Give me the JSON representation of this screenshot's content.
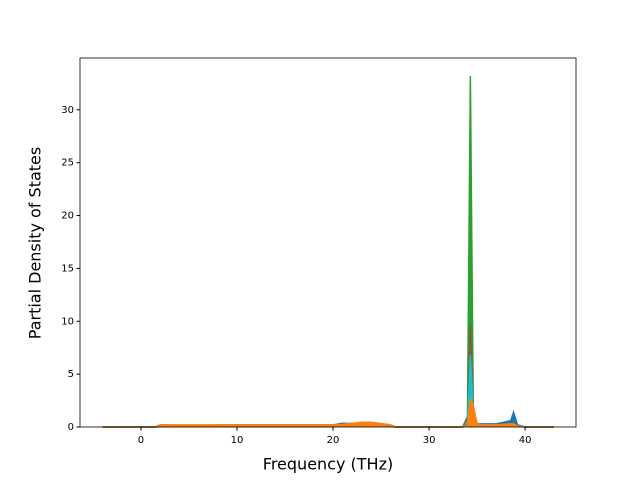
{
  "chart_data": {
    "type": "area",
    "xlabel": "Frequency (THz)",
    "ylabel": "Partial Density of States",
    "x": [
      -4,
      1.5,
      2,
      5,
      10,
      15,
      20,
      21,
      23,
      24,
      26,
      26.5,
      33.5,
      34,
      34.3,
      34.6,
      35,
      35.5,
      36,
      37,
      38.5,
      38.8,
      39.2,
      40,
      43
    ],
    "series": [
      {
        "color": "#2ca02c",
        "values": [
          0,
          0,
          0.05,
          0.05,
          0.05,
          0.05,
          0.05,
          0.1,
          0.1,
          0.1,
          0.05,
          0,
          0,
          1,
          33.2,
          2,
          0.2,
          0.1,
          0.1,
          0.1,
          0.1,
          0.1,
          0.05,
          0,
          0
        ]
      },
      {
        "color": "#8c564b",
        "values": [
          0,
          0,
          0.1,
          0.1,
          0.1,
          0.1,
          0.1,
          0.2,
          0.2,
          0.2,
          0.1,
          0,
          0,
          0.8,
          9.6,
          1.5,
          0.2,
          0.1,
          0.1,
          0.1,
          0.2,
          0.3,
          0.1,
          0,
          0
        ]
      },
      {
        "color": "#17becf",
        "values": [
          0,
          0,
          0.15,
          0.15,
          0.15,
          0.15,
          0.15,
          0.3,
          0.35,
          0.35,
          0.15,
          0,
          0,
          0.5,
          6.8,
          1.2,
          0.3,
          0.2,
          0.2,
          0.2,
          0.4,
          0.6,
          0.1,
          0,
          0
        ]
      },
      {
        "color": "#1f77b4",
        "values": [
          0,
          0,
          0.2,
          0.15,
          0.2,
          0.2,
          0.2,
          0.35,
          0.3,
          0.3,
          0.15,
          0,
          0,
          0.3,
          1,
          0.5,
          0.3,
          0.3,
          0.3,
          0.3,
          0.6,
          1.4,
          0.2,
          0,
          0
        ]
      },
      {
        "color": "#ff7f0e",
        "values": [
          0,
          0,
          0.2,
          0.2,
          0.2,
          0.2,
          0.2,
          0.25,
          0.45,
          0.45,
          0.2,
          0,
          0,
          0.2,
          2.7,
          2,
          0.3,
          0.2,
          0.2,
          0.2,
          0.3,
          0.3,
          0.1,
          0,
          0
        ]
      }
    ],
    "xlim": [
      -6.35,
      45.3
    ],
    "ylim": [
      0,
      34.9
    ],
    "xticks": [
      0,
      10,
      20,
      30,
      40
    ],
    "yticks": [
      0,
      5,
      10,
      15,
      20,
      25,
      30
    ]
  }
}
